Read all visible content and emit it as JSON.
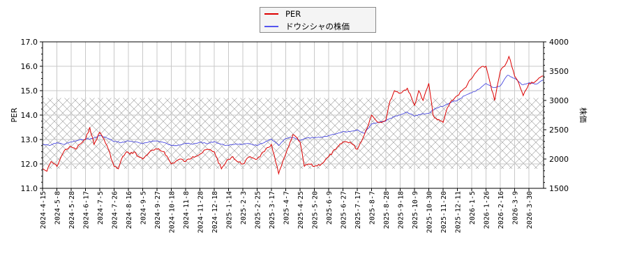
{
  "legend": {
    "items": [
      {
        "label": "PER",
        "color": "#dd0000"
      },
      {
        "label": "ドウシシャの株価",
        "color": "#3333dd"
      }
    ]
  },
  "axes": {
    "left_title": "PER",
    "right_title": "株価",
    "left_ticks": [
      "17.0",
      "16.0",
      "15.0",
      "14.0",
      "13.0",
      "12.0",
      "11.0"
    ],
    "right_ticks": [
      "4000",
      "3500",
      "3000",
      "2500",
      "2000",
      "1500"
    ]
  },
  "chart_data": {
    "type": "line",
    "title": "",
    "xlabel": "",
    "ylabel": "PER",
    "y2label": "株価",
    "ylim": [
      11.0,
      17.0
    ],
    "y2lim": [
      1500,
      4000
    ],
    "grid": true,
    "legend_position": "top-center",
    "shaded_band": {
      "axis": "left",
      "from": 11.8,
      "to": 14.7,
      "pattern": "cross-hatch"
    },
    "x_tick_labels": [
      "2024-4-15",
      "2024-5-8",
      "2024-5-28",
      "2024-6-17",
      "2024-7-5",
      "2024-7-26",
      "2024-8-16",
      "2024-9-5",
      "2024-9-27",
      "2024-10-18",
      "2024-11-8",
      "2024-11-28",
      "2024-12-18",
      "2025-1-14",
      "2025-2-3",
      "2025-2-25",
      "2025-3-17",
      "2025-4-7",
      "2025-4-25",
      "2025-5-20",
      "2025-6-9",
      "2025-6-27",
      "2025-7-17",
      "2025-8-7",
      "2025-8-28",
      "2025-9-18",
      "2025-10-9",
      "2025-10-30",
      "2025-11-20",
      "2025-12-11",
      "2026-1-5",
      "2026-1-26",
      "2026-2-16",
      "2026-3-9",
      "2026-3-30"
    ],
    "series": [
      {
        "name": "PER",
        "axis": "left",
        "color": "#dd0000",
        "x_index": [
          0,
          0.3,
          0.6,
          1,
          1.3,
          1.6,
          2,
          2.3,
          2.6,
          3,
          3.3,
          3.6,
          4,
          4.3,
          4.6,
          5,
          5.3,
          5.6,
          5.9,
          6.1,
          6.4,
          6.7,
          7,
          7.5,
          8,
          8.5,
          9,
          9.3,
          9.6,
          10,
          10.5,
          11,
          11.5,
          12,
          12.5,
          13,
          13.3,
          13.6,
          14,
          14.5,
          15,
          15.5,
          16,
          16.5,
          17,
          17.2,
          17.5,
          18,
          18.3,
          18.6,
          19,
          19.5,
          20,
          20.5,
          21,
          21.5,
          22,
          22.5,
          23,
          23.5,
          24,
          24.3,
          24.6,
          25,
          25.5,
          26,
          26.3,
          26.6,
          27,
          27.3,
          27.6,
          28,
          28.3,
          28.6,
          29,
          29.5,
          30,
          30.5,
          31,
          31.3,
          31.6,
          32,
          32.3,
          32.6,
          33,
          33.3,
          33.6,
          34,
          34.5,
          35
        ],
        "values": [
          11.8,
          11.7,
          12.1,
          11.9,
          12.3,
          12.6,
          12.7,
          12.6,
          12.8,
          13.0,
          13.5,
          12.8,
          13.3,
          13.0,
          12.6,
          11.9,
          11.8,
          12.3,
          12.5,
          12.4,
          12.5,
          12.3,
          12.2,
          12.5,
          12.6,
          12.5,
          12.0,
          12.1,
          12.2,
          12.1,
          12.3,
          12.4,
          12.6,
          12.5,
          11.8,
          12.2,
          12.3,
          12.1,
          12.0,
          12.3,
          12.2,
          12.5,
          12.8,
          11.6,
          12.4,
          12.7,
          13.2,
          12.9,
          11.9,
          12.0,
          11.9,
          12.0,
          12.3,
          12.6,
          12.9,
          12.9,
          12.6,
          13.2,
          14.0,
          13.7,
          13.8,
          14.6,
          15.0,
          14.9,
          15.1,
          14.4,
          15.0,
          14.6,
          15.3,
          14.0,
          13.8,
          13.7,
          14.3,
          14.6,
          14.8,
          15.1,
          15.5,
          15.9,
          16.0,
          15.3,
          14.6,
          15.8,
          16.0,
          16.4,
          15.6,
          15.3,
          14.8,
          15.3,
          15.4,
          15.6
        ],
        "approximate": true
      },
      {
        "name": "ドウシシャの株価",
        "axis": "right",
        "color": "#3333dd",
        "x_index": [
          0,
          0.5,
          1,
          1.5,
          2,
          2.5,
          3,
          3.5,
          4,
          4.5,
          5,
          5.5,
          6,
          6.5,
          7,
          7.5,
          8,
          8.5,
          9,
          9.5,
          10,
          10.5,
          11,
          11.5,
          12,
          12.5,
          13,
          13.5,
          14,
          14.5,
          15,
          15.5,
          16,
          16.5,
          17,
          17.5,
          18,
          18.5,
          19,
          19.5,
          20,
          20.5,
          21,
          21.5,
          22,
          22.5,
          23,
          23.5,
          24,
          24.5,
          25,
          25.5,
          26,
          26.5,
          27,
          27.5,
          28,
          28.5,
          29,
          29.5,
          30,
          30.5,
          31,
          31.5,
          32,
          32.5,
          33,
          33.5,
          34,
          34.5,
          35
        ],
        "values": [
          2250,
          2230,
          2280,
          2250,
          2290,
          2320,
          2340,
          2350,
          2400,
          2360,
          2300,
          2280,
          2310,
          2290,
          2260,
          2300,
          2310,
          2280,
          2230,
          2240,
          2270,
          2250,
          2290,
          2260,
          2300,
          2250,
          2230,
          2260,
          2250,
          2260,
          2230,
          2280,
          2340,
          2230,
          2350,
          2370,
          2320,
          2360,
          2360,
          2370,
          2400,
          2430,
          2470,
          2470,
          2500,
          2440,
          2600,
          2630,
          2650,
          2720,
          2750,
          2800,
          2730,
          2770,
          2780,
          2870,
          2900,
          2960,
          3000,
          3080,
          3130,
          3190,
          3290,
          3220,
          3250,
          3430,
          3380,
          3270,
          3300,
          3280,
          3350
        ],
        "approximate": true
      }
    ]
  }
}
